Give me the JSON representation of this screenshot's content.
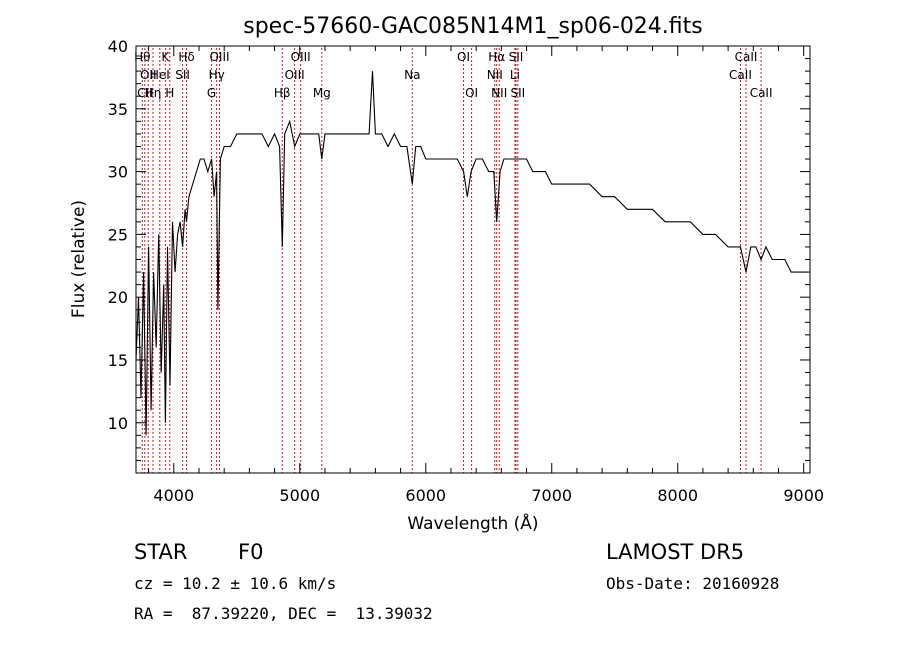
{
  "chart_data": {
    "type": "line",
    "title": "spec-57660-GAC085N14M1_sp06-024.fits",
    "xlabel": "Wavelength (Å)",
    "ylabel": "Flux (relative)",
    "xlim": [
      3700,
      9050
    ],
    "ylim": [
      6,
      40
    ],
    "xticks": [
      4000,
      5000,
      6000,
      7000,
      8000,
      9000
    ],
    "yticks": [
      10,
      15,
      20,
      25,
      30,
      35,
      40
    ],
    "grid": false,
    "line_color": "#000000",
    "marker_color": "#b22222",
    "series": [
      {
        "x": [
          3700,
          3720,
          3740,
          3760,
          3780,
          3800,
          3820,
          3840,
          3860,
          3880,
          3900,
          3920,
          3933,
          3950,
          3970,
          3990,
          4010,
          4030,
          4050,
          4070,
          4090,
          4101,
          4120,
          4150,
          4180,
          4210,
          4240,
          4270,
          4300,
          4320,
          4340,
          4350,
          4370,
          4400,
          4450,
          4500,
          4550,
          4600,
          4650,
          4700,
          4750,
          4800,
          4840,
          4861,
          4880,
          4920,
          4960,
          5000,
          5050,
          5100,
          5150,
          5175,
          5200,
          5250,
          5300,
          5350,
          5400,
          5450,
          5500,
          5550,
          5577,
          5600,
          5650,
          5700,
          5750,
          5800,
          5850,
          5893,
          5920,
          5960,
          6000,
          6050,
          6100,
          6150,
          6200,
          6250,
          6300,
          6330,
          6360,
          6400,
          6450,
          6500,
          6540,
          6563,
          6590,
          6620,
          6680,
          6720,
          6760,
          6800,
          6850,
          6900,
          6950,
          7000,
          7100,
          7200,
          7300,
          7400,
          7500,
          7600,
          7700,
          7800,
          7900,
          8000,
          8100,
          8200,
          8300,
          8400,
          8450,
          8498,
          8542,
          8580,
          8620,
          8662,
          8700,
          8750,
          8800,
          8850,
          8900,
          8950,
          9000,
          9030
        ],
        "y": [
          15,
          20,
          12,
          22,
          9,
          24,
          11,
          22,
          16,
          25,
          14,
          21,
          10,
          24,
          13,
          26,
          22,
          25,
          26,
          24,
          27,
          26,
          28,
          29,
          30,
          31,
          31,
          30,
          31,
          28,
          30,
          19,
          31,
          32,
          32,
          33,
          33,
          33,
          33,
          33,
          32,
          33,
          32,
          24,
          33,
          34,
          32,
          33,
          33,
          33,
          33,
          31,
          33,
          33,
          33,
          33,
          33,
          33,
          33,
          33,
          38,
          33,
          33,
          32,
          33,
          32,
          32,
          29,
          32,
          32,
          31,
          31,
          31,
          31,
          31,
          31,
          30,
          28,
          30,
          31,
          31,
          30,
          30,
          26,
          30,
          31,
          31,
          31,
          31,
          31,
          30,
          30,
          30,
          29,
          29,
          29,
          29,
          28,
          28,
          27,
          27,
          27,
          26,
          26,
          26,
          25,
          25,
          24,
          24,
          24,
          22,
          24,
          24,
          23,
          24,
          23,
          23,
          23,
          22,
          22,
          22,
          22
        ]
      }
    ],
    "lines": [
      {
        "x": 3750,
        "label": "Hθ",
        "row": 0
      },
      {
        "x": 3797,
        "label": "OII",
        "row": 1
      },
      {
        "x": 3770,
        "label": "CII",
        "row": 2
      },
      {
        "x": 3835,
        "label": "Hη",
        "row": 2
      },
      {
        "x": 3889,
        "label": "HeI",
        "row": 1
      },
      {
        "x": 3933,
        "label": "K",
        "row": 0
      },
      {
        "x": 3968,
        "label": "H",
        "row": 2
      },
      {
        "x": 4070,
        "label": "SII",
        "row": 1
      },
      {
        "x": 4101,
        "label": "Hδ",
        "row": 0
      },
      {
        "x": 4300,
        "label": "G",
        "row": 2
      },
      {
        "x": 4340,
        "label": "Hγ",
        "row": 1
      },
      {
        "x": 4363,
        "label": "OIII",
        "row": 0
      },
      {
        "x": 4861,
        "label": "Hβ",
        "row": 2
      },
      {
        "x": 4959,
        "label": "OIII",
        "row": 1
      },
      {
        "x": 5007,
        "label": "OIII",
        "row": 0
      },
      {
        "x": 5175,
        "label": "Mg",
        "row": 2
      },
      {
        "x": 5893,
        "label": "Na",
        "row": 1
      },
      {
        "x": 6300,
        "label": "OI",
        "row": 0
      },
      {
        "x": 6364,
        "label": "OI",
        "row": 2
      },
      {
        "x": 6548,
        "label": "NII",
        "row": 1
      },
      {
        "x": 6563,
        "label": "Hα",
        "row": 0
      },
      {
        "x": 6583,
        "label": "NII",
        "row": 2
      },
      {
        "x": 6708,
        "label": "Li",
        "row": 1
      },
      {
        "x": 6716,
        "label": "SII",
        "row": 0
      },
      {
        "x": 6731,
        "label": "SII",
        "row": 2
      },
      {
        "x": 8498,
        "label": "CaII",
        "row": 1
      },
      {
        "x": 8542,
        "label": "CaII",
        "row": 0
      },
      {
        "x": 8662,
        "label": "CaII",
        "row": 2
      }
    ]
  },
  "info": {
    "class": "STAR",
    "subclass": "F0",
    "survey": "LAMOST DR5",
    "cz": "cz = 10.2 ± 10.6 km/s",
    "obs_date": "Obs-Date: 20160928",
    "coords": "RA =  87.39220, DEC =  13.39032"
  }
}
